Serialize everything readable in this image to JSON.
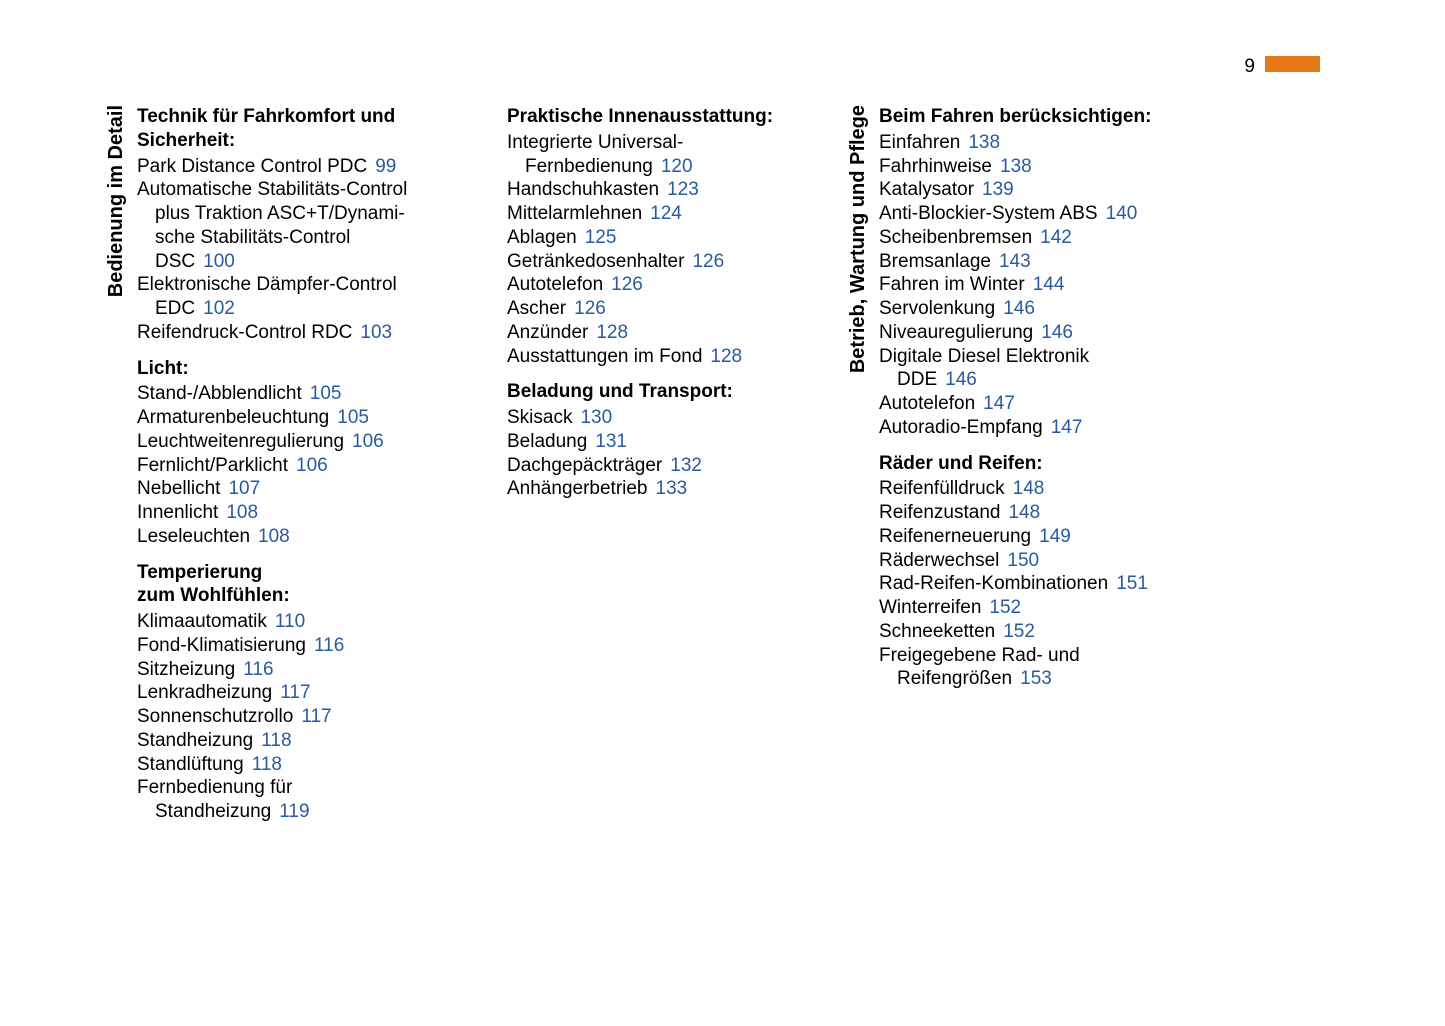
{
  "page_number": "9",
  "colors": {
    "link": "#2a5a9e",
    "accent": "#e67817",
    "text": "#000000",
    "background": "#ffffff"
  },
  "columns": [
    {
      "side_label": "Bedienung im Detail",
      "sections": [
        {
          "title": "Technik für Fahrkomfort und Sicherheit:",
          "entries": [
            {
              "label": "Park Distance Control PDC",
              "page": "99"
            },
            {
              "label": "Automatische Stabilitäts-Control plus Traktion ASC+T/Dynamische Stabilitäts-Control DSC",
              "page": "100",
              "wrap": [
                "Automatische Stabilitäts-Control",
                "plus Traktion ASC+T/Dynami-",
                "sche Stabilitäts-Control",
                "DSC"
              ]
            },
            {
              "label": "Elektronische Dämpfer-Control EDC",
              "page": "102",
              "wrap": [
                "Elektronische Dämpfer-Control",
                "EDC"
              ]
            },
            {
              "label": "Reifendruck-Control RDC",
              "page": "103"
            }
          ]
        },
        {
          "title": "Licht:",
          "entries": [
            {
              "label": "Stand-/Abblendlicht",
              "page": "105"
            },
            {
              "label": "Armaturenbeleuchtung",
              "page": "105"
            },
            {
              "label": "Leuchtweitenregulierung",
              "page": "106"
            },
            {
              "label": "Fernlicht/Parklicht",
              "page": "106"
            },
            {
              "label": "Nebellicht",
              "page": "107"
            },
            {
              "label": "Innenlicht",
              "page": "108"
            },
            {
              "label": "Leseleuchten",
              "page": "108"
            }
          ]
        },
        {
          "title": "Temperierung\nzum Wohlfühlen:",
          "entries": [
            {
              "label": "Klimaautomatik",
              "page": "110"
            },
            {
              "label": "Fond-Klimatisierung",
              "page": "116"
            },
            {
              "label": "Sitzheizung",
              "page": "116"
            },
            {
              "label": "Lenkradheizung",
              "page": "117"
            },
            {
              "label": "Sonnenschutzrollo",
              "page": "117"
            },
            {
              "label": "Standheizung",
              "page": "118"
            },
            {
              "label": "Standlüftung",
              "page": "118"
            },
            {
              "label": "Fernbedienung für Standheizung",
              "page": "119",
              "wrap": [
                "Fernbedienung für",
                "Standheizung"
              ]
            }
          ]
        }
      ]
    },
    {
      "side_label": "",
      "sections": [
        {
          "title": "Praktische Innenausstattung:",
          "entries": [
            {
              "label": "Integrierte Universal-Fernbedienung",
              "page": "120",
              "wrap": [
                "Integrierte Universal-",
                "Fernbedienung"
              ]
            },
            {
              "label": "Handschuhkasten",
              "page": "123"
            },
            {
              "label": "Mittelarmlehnen",
              "page": "124"
            },
            {
              "label": "Ablagen",
              "page": "125"
            },
            {
              "label": "Getränkedosenhalter",
              "page": "126"
            },
            {
              "label": "Autotelefon",
              "page": "126"
            },
            {
              "label": "Ascher",
              "page": "126"
            },
            {
              "label": "Anzünder",
              "page": "128"
            },
            {
              "label": "Ausstattungen im Fond",
              "page": "128"
            }
          ]
        },
        {
          "title": "Beladung und Transport:",
          "entries": [
            {
              "label": "Skisack",
              "page": "130"
            },
            {
              "label": "Beladung",
              "page": "131"
            },
            {
              "label": "Dachgepäckträger",
              "page": "132"
            },
            {
              "label": "Anhängerbetrieb",
              "page": "133"
            }
          ]
        }
      ]
    },
    {
      "side_label": "Betrieb, Wartung und Pflege",
      "sections": [
        {
          "title": "Beim Fahren berücksichtigen:",
          "entries": [
            {
              "label": "Einfahren",
              "page": "138"
            },
            {
              "label": "Fahrhinweise",
              "page": "138"
            },
            {
              "label": "Katalysator",
              "page": "139"
            },
            {
              "label": "Anti-Blockier-System ABS",
              "page": "140"
            },
            {
              "label": "Scheibenbremsen",
              "page": "142"
            },
            {
              "label": "Bremsanlage",
              "page": "143"
            },
            {
              "label": "Fahren im Winter",
              "page": "144"
            },
            {
              "label": "Servolenkung",
              "page": "146"
            },
            {
              "label": "Niveauregulierung",
              "page": "146"
            },
            {
              "label": "Digitale Diesel Elektronik DDE",
              "page": "146",
              "wrap": [
                "Digitale Diesel Elektronik",
                "DDE"
              ]
            },
            {
              "label": "Autotelefon",
              "page": "147"
            },
            {
              "label": "Autoradio-Empfang",
              "page": "147"
            }
          ]
        },
        {
          "title": "Räder und Reifen:",
          "entries": [
            {
              "label": "Reifenfülldruck",
              "page": "148"
            },
            {
              "label": "Reifenzustand",
              "page": "148"
            },
            {
              "label": "Reifenerneuerung",
              "page": "149"
            },
            {
              "label": "Räderwechsel",
              "page": "150"
            },
            {
              "label": "Rad-Reifen-Kombinationen",
              "page": "151"
            },
            {
              "label": "Winterreifen",
              "page": "152"
            },
            {
              "label": "Schneeketten",
              "page": "152"
            },
            {
              "label": "Freigegebene Rad- und Reifengrößen",
              "page": "153",
              "wrap": [
                "Freigegebene Rad- und",
                "Reifengrößen"
              ]
            }
          ]
        }
      ]
    }
  ]
}
